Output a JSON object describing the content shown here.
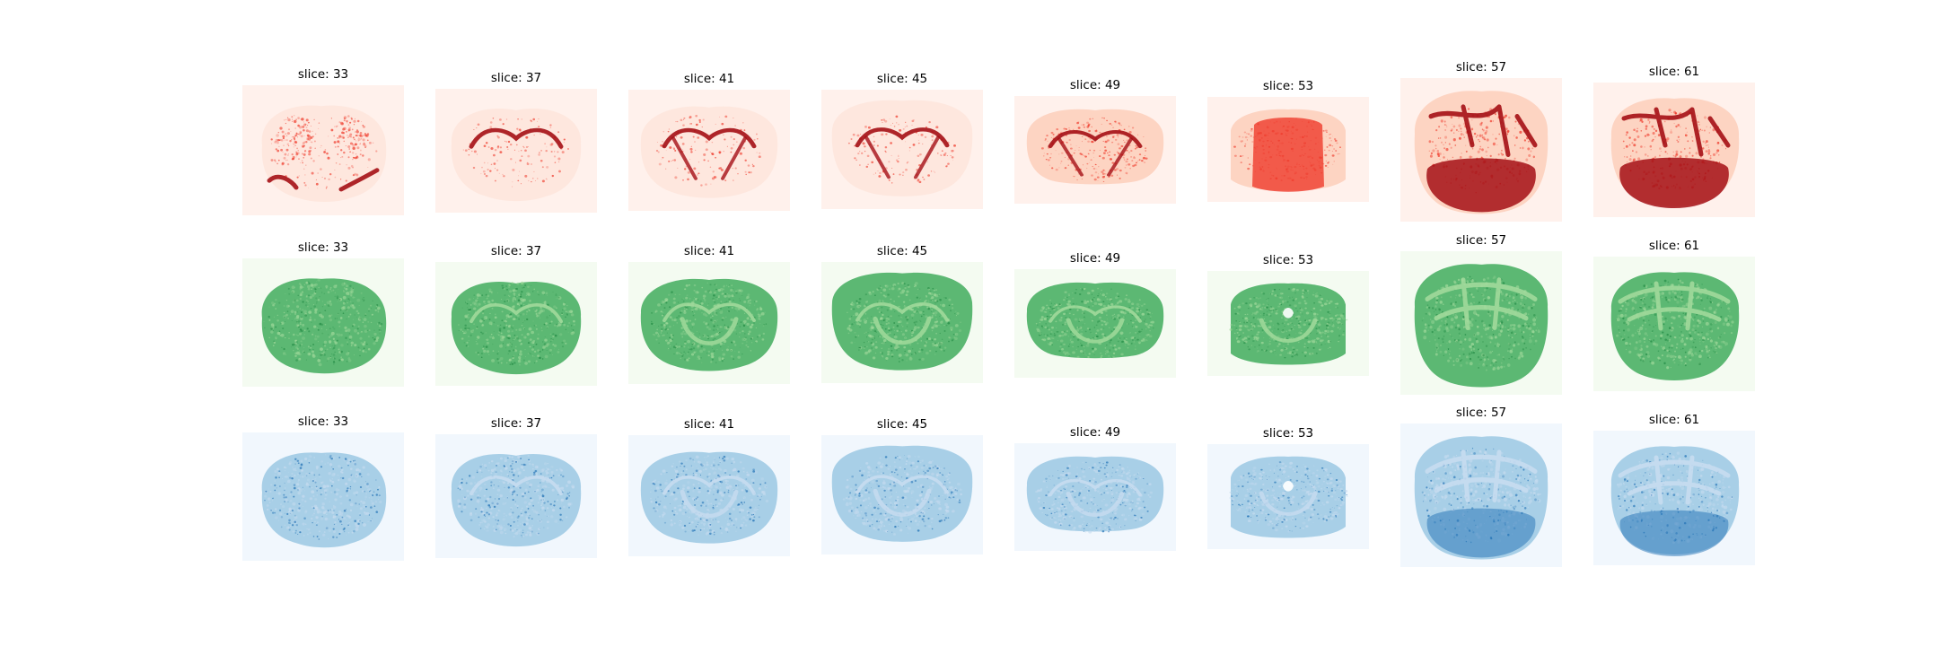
{
  "figure": {
    "rows": [
      {
        "channel": "red",
        "colormap": "Reds",
        "background": "#fff1ec",
        "colors": {
          "light": "#fcbba1",
          "mid": "#ef3b2c",
          "dark": "#a50f15"
        },
        "titles": [
          "slice: 33",
          "slice: 37",
          "slice: 41",
          "slice: 45",
          "slice: 49",
          "slice: 53",
          "slice: 57",
          "slice: 61"
        ]
      },
      {
        "channel": "green",
        "colormap": "Greens",
        "background": "#f4fbf1",
        "colors": {
          "light": "#a1d99b",
          "mid": "#41ab5d",
          "dark": "#238b45"
        },
        "titles": [
          "slice: 33",
          "slice: 37",
          "slice: 41",
          "slice: 45",
          "slice: 49",
          "slice: 53",
          "slice: 57",
          "slice: 61"
        ]
      },
      {
        "channel": "blue",
        "colormap": "Blues",
        "background": "#f1f7fd",
        "colors": {
          "light": "#c6dbef",
          "mid": "#6baed6",
          "dark": "#2171b5"
        },
        "titles": [
          "slice: 33",
          "slice: 37",
          "slice: 41",
          "slice: 45",
          "slice: 49",
          "slice: 53",
          "slice: 57",
          "slice: 61"
        ]
      }
    ]
  }
}
